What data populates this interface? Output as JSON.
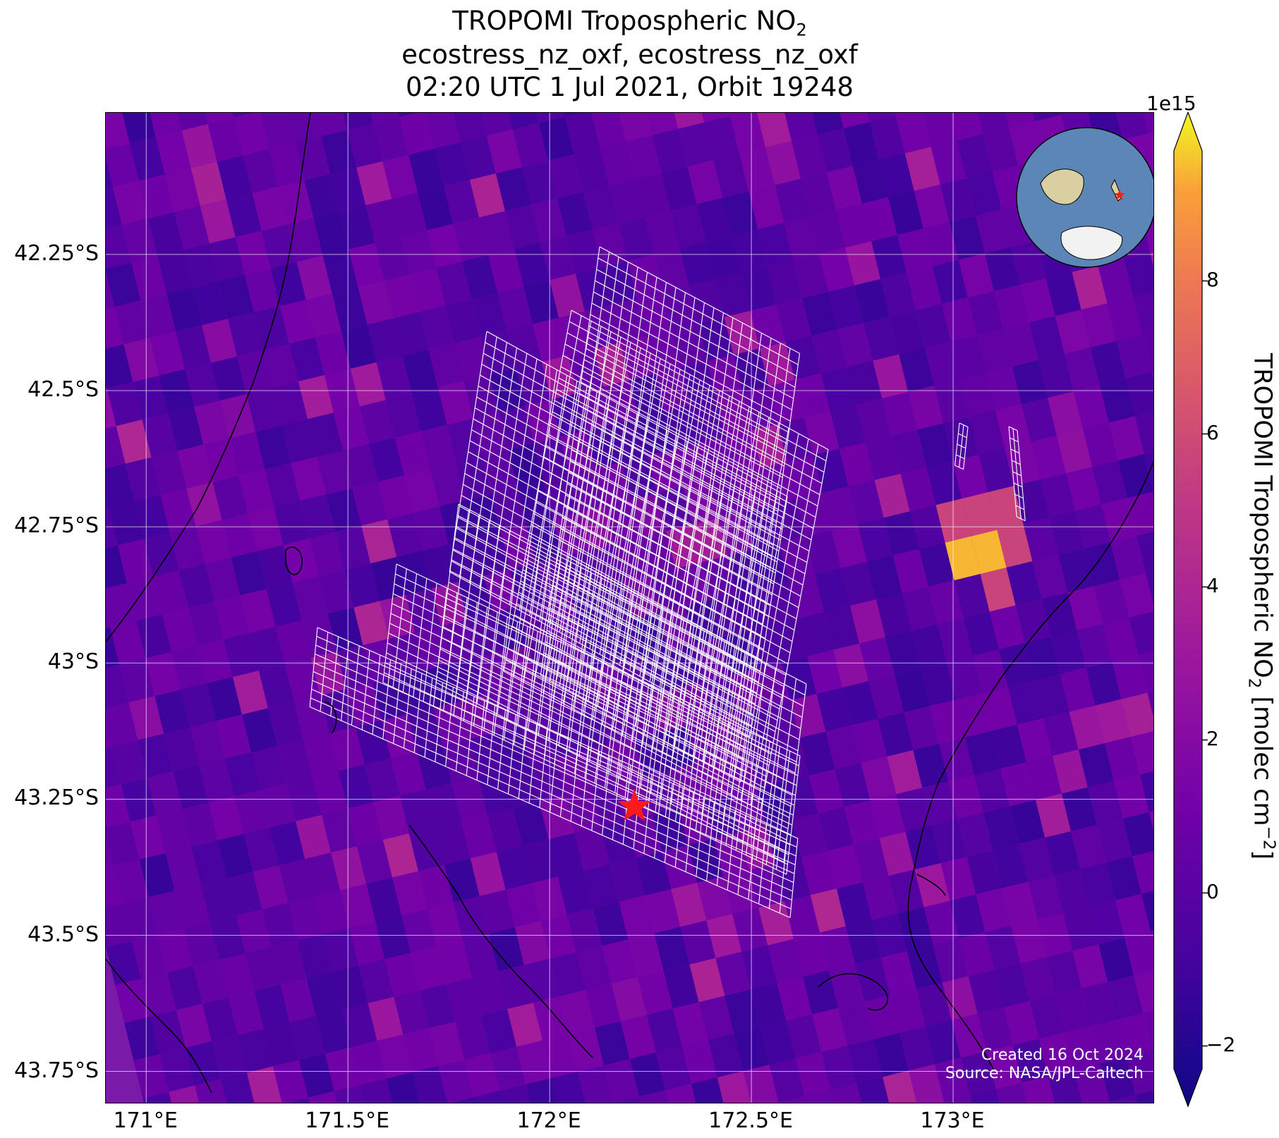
{
  "title": {
    "line1": "TROPOMI Tropospheric NO",
    "line1_sub": "2",
    "line2": "ecostress_nz_oxf, ecostress_nz_oxf",
    "line3": "02:20 UTC 1 Jul 2021, Orbit 19248"
  },
  "axes": {
    "lat_ticks": [
      "42.25°S",
      "42.5°S",
      "42.75°S",
      "43°S",
      "43.25°S",
      "43.5°S",
      "43.75°S"
    ],
    "lon_ticks": [
      "171°E",
      "171.5°E",
      "172°E",
      "172.5°E",
      "173°E"
    ]
  },
  "colorbar": {
    "exponent": "1e15",
    "ticks": [
      "8",
      "6",
      "4",
      "2",
      "0",
      "−2"
    ],
    "label_main": "TROPOMI Tropospheric NO",
    "label_sub": "2",
    "label_unit": " [molec cm",
    "label_sup": "−2",
    "label_end": "]",
    "colormap": "plasma",
    "range": [
      -2.3,
      9.7
    ]
  },
  "credit": {
    "line1": "Created 16 Oct 2024",
    "line2": "Source: NASA/JPL-Caltech"
  },
  "chart_data": {
    "type": "heatmap",
    "extent_lon": [
      170.9,
      173.5
    ],
    "extent_lat": [
      -43.81,
      -41.99
    ],
    "gridlines_lon": [
      171.0,
      171.5,
      172.0,
      172.5,
      173.0
    ],
    "gridlines_lat": [
      -42.25,
      -42.5,
      -42.75,
      -43.0,
      -43.25,
      -43.5,
      -43.75
    ],
    "marker": {
      "lon": 172.21,
      "lat": -43.26,
      "symbol": "red-star"
    },
    "hotspot": {
      "lon": 173.08,
      "lat": -42.78,
      "value": 9.0
    }
  },
  "inset": {
    "type": "globe",
    "icon": "globe-icon"
  }
}
